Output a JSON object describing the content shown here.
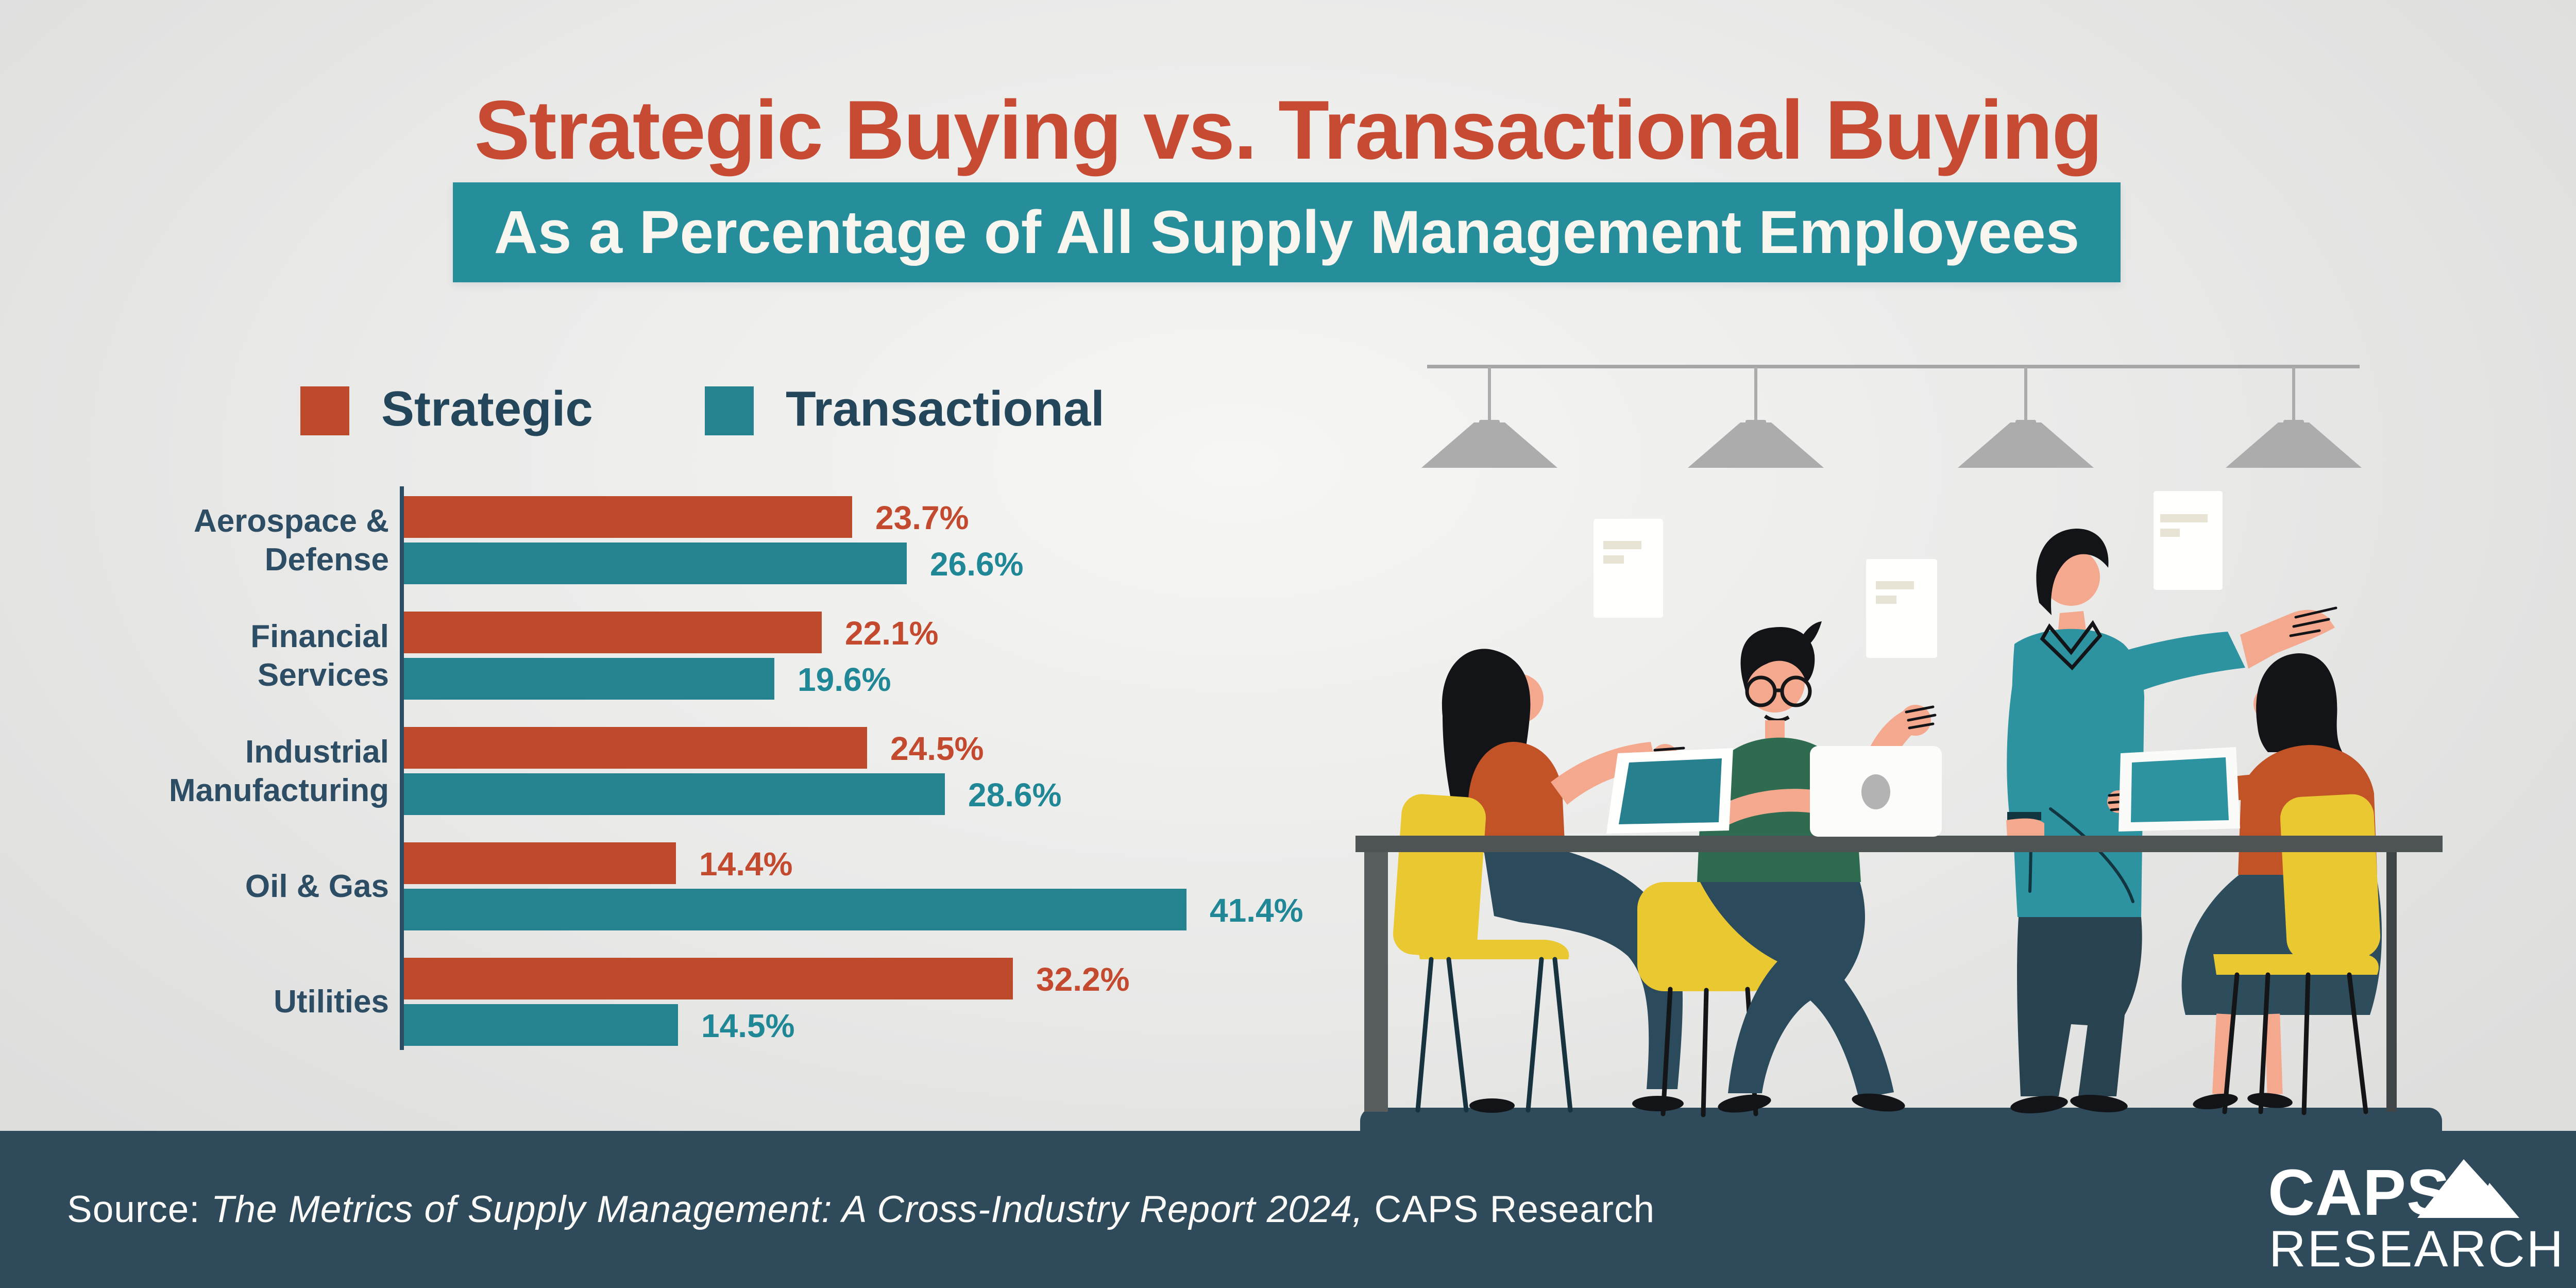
{
  "header": {
    "title": "Strategic Buying vs. Transactional Buying",
    "subtitle": "As a Percentage of All Supply Management Employees"
  },
  "legend": {
    "items": [
      {
        "label": "Strategic"
      },
      {
        "label": "Transactional"
      }
    ]
  },
  "palette": {
    "title-red": "#C74A33",
    "strategic": "#BC4A2B",
    "strategic-text": "#C34A2E",
    "transactional": "#25838F",
    "transactional-text": "#1F8795",
    "band-teal": "#268D9A",
    "navy-text": "#2C4D63",
    "legend-text": "#24465A",
    "footer-bg": "#2E4A5B",
    "cream": "#F8F6EE"
  },
  "chart_data": {
    "type": "bar",
    "orientation": "horizontal",
    "title": "Strategic Buying vs. Transactional Buying",
    "subtitle": "As a Percentage of All Supply Management Employees",
    "categories": [
      [
        "Aerospace &",
        "Defense"
      ],
      [
        "Financial",
        "Services"
      ],
      [
        "Industrial",
        "Manufacturing"
      ],
      [
        "Oil & Gas"
      ],
      [
        "Utilities"
      ]
    ],
    "series": [
      {
        "name": "Strategic",
        "values": [
          23.7,
          22.1,
          24.5,
          14.4,
          32.2
        ]
      },
      {
        "name": "Transactional",
        "values": [
          26.6,
          19.6,
          28.6,
          41.4,
          14.5
        ]
      }
    ],
    "value_suffix": "%",
    "xlim": [
      0,
      45
    ],
    "grid": false,
    "legend_position": "top-left",
    "value_labels": true
  },
  "illustration": {
    "description": "office meeting: four people at a table with laptops and tablets under pendant lamps"
  },
  "footer": {
    "source_prefix": "Source: ",
    "source_italic": "The Metrics of Supply Management: A Cross-Industry Report 2024,",
    "source_suffix": " CAPS Research",
    "logo_line1": "CAPS",
    "logo_line2": "RESEARCH"
  }
}
